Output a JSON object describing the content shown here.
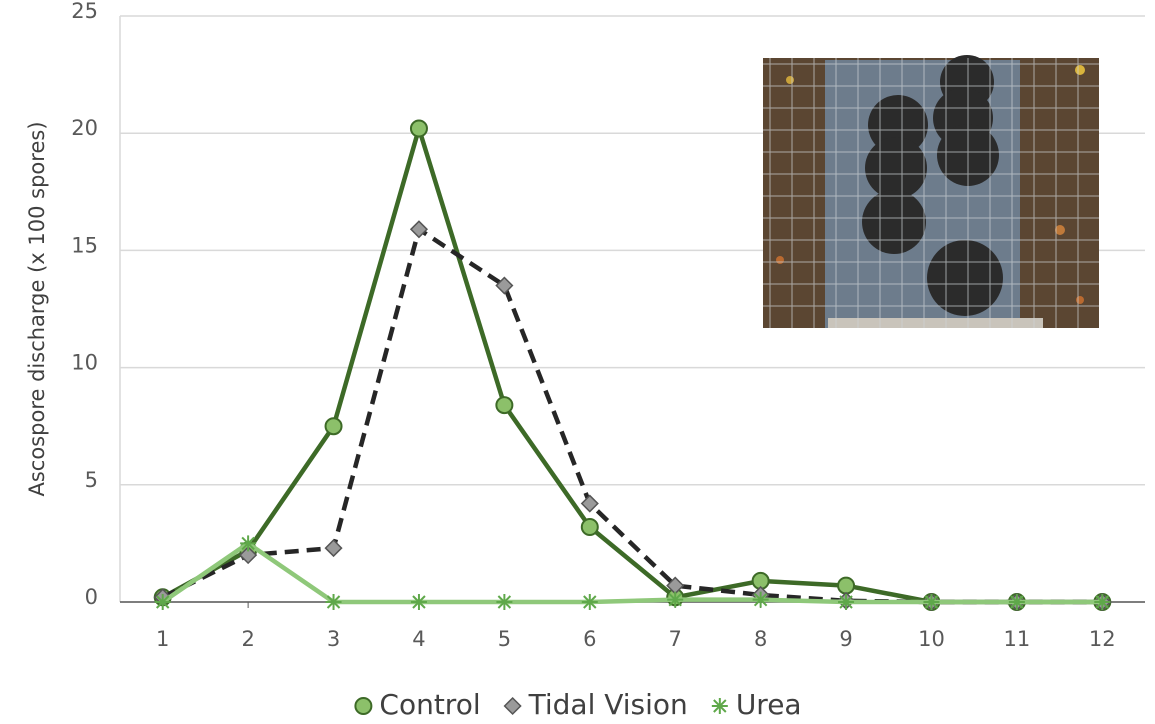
{
  "chart_data": {
    "type": "line",
    "y_label": "Ascospore discharge (x 100 spores)",
    "x": [
      1,
      2,
      3,
      4,
      5,
      6,
      7,
      8,
      9,
      10,
      11,
      12
    ],
    "xlim": [
      0.5,
      12.5
    ],
    "xticks": [
      1,
      2,
      3,
      4,
      5,
      6,
      7,
      8,
      9,
      10,
      11,
      12
    ],
    "ylim": [
      0,
      25
    ],
    "yticks": [
      0,
      5,
      10,
      15,
      20,
      25
    ],
    "grid": true,
    "legend": "bottom",
    "series": [
      {
        "name": "Control",
        "color": "#3d6a27",
        "marker": "circle",
        "marker_color": "#8cc06a",
        "dashed": false,
        "values": [
          0.2,
          2.2,
          7.5,
          20.2,
          8.4,
          3.2,
          0.2,
          0.9,
          0.7,
          0,
          0,
          0
        ]
      },
      {
        "name": "Tidal Vision",
        "color": "#262626",
        "marker": "diamond",
        "marker_color": "#9a9a9a",
        "dashed": true,
        "values": [
          0.2,
          2.0,
          2.3,
          15.9,
          13.5,
          4.2,
          0.7,
          0.3,
          0.05,
          0,
          0,
          0
        ]
      },
      {
        "name": "Urea",
        "color": "#8fc87a",
        "marker": "star",
        "marker_color": "#5fa84a",
        "dashed": false,
        "values": [
          0,
          2.5,
          0,
          0,
          0,
          0,
          0.1,
          0.1,
          0,
          0,
          0,
          0
        ]
      }
    ]
  }
}
